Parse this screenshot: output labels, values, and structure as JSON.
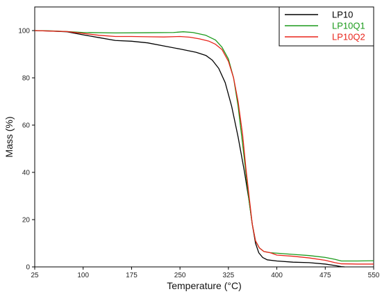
{
  "chart_data": {
    "type": "line",
    "title": "",
    "xlabel": "Temperature (°C)",
    "ylabel": "Mass (%)",
    "xlim": [
      25,
      550
    ],
    "ylim": [
      0,
      110
    ],
    "x_ticks": [
      25,
      100,
      175,
      250,
      325,
      400,
      475,
      550
    ],
    "y_ticks": [
      0,
      20,
      40,
      60,
      80,
      100
    ],
    "grid": false,
    "legend_position": "top-right",
    "series": [
      {
        "name": "LP10",
        "color": "#000000",
        "points": [
          [
            25,
            100
          ],
          [
            50,
            99.8
          ],
          [
            75,
            99.5
          ],
          [
            100,
            98.2
          ],
          [
            125,
            97
          ],
          [
            150,
            95.8
          ],
          [
            175,
            95.5
          ],
          [
            200,
            94.8
          ],
          [
            225,
            93.5
          ],
          [
            250,
            92.2
          ],
          [
            275,
            90.8
          ],
          [
            290,
            89.5
          ],
          [
            300,
            87.5
          ],
          [
            310,
            84
          ],
          [
            320,
            78
          ],
          [
            330,
            68
          ],
          [
            340,
            55
          ],
          [
            350,
            40
          ],
          [
            357,
            28
          ],
          [
            362,
            18
          ],
          [
            367,
            10
          ],
          [
            372,
            6
          ],
          [
            378,
            4
          ],
          [
            385,
            3
          ],
          [
            400,
            2.5
          ],
          [
            425,
            2
          ],
          [
            450,
            1.8
          ],
          [
            475,
            1.2
          ],
          [
            490,
            0.6
          ],
          [
            500,
            0.1
          ],
          [
            505,
            0
          ]
        ]
      },
      {
        "name": "LP10Q1",
        "color": "#1a9a1a",
        "points": [
          [
            25,
            100
          ],
          [
            50,
            99.9
          ],
          [
            75,
            99.6
          ],
          [
            100,
            99.2
          ],
          [
            150,
            99
          ],
          [
            200,
            99.1
          ],
          [
            240,
            99.2
          ],
          [
            255,
            99.5
          ],
          [
            270,
            99.2
          ],
          [
            290,
            98
          ],
          [
            305,
            96
          ],
          [
            315,
            93
          ],
          [
            325,
            88
          ],
          [
            333,
            80
          ],
          [
            340,
            68
          ],
          [
            347,
            52
          ],
          [
            352,
            40
          ],
          [
            357,
            28
          ],
          [
            362,
            18
          ],
          [
            367,
            11
          ],
          [
            373,
            8
          ],
          [
            380,
            6.5
          ],
          [
            390,
            6
          ],
          [
            400,
            5.8
          ],
          [
            425,
            5.3
          ],
          [
            450,
            4.8
          ],
          [
            475,
            4
          ],
          [
            490,
            3.2
          ],
          [
            500,
            2.5
          ],
          [
            525,
            2.5
          ],
          [
            550,
            2.6
          ]
        ]
      },
      {
        "name": "LP10Q2",
        "color": "#e8231a",
        "points": [
          [
            25,
            100
          ],
          [
            50,
            99.8
          ],
          [
            75,
            99.6
          ],
          [
            100,
            98.8
          ],
          [
            125,
            98
          ],
          [
            150,
            97.5
          ],
          [
            175,
            97.5
          ],
          [
            200,
            97.4
          ],
          [
            225,
            97.3
          ],
          [
            250,
            97.5
          ],
          [
            265,
            97.2
          ],
          [
            280,
            96.5
          ],
          [
            295,
            95.5
          ],
          [
            305,
            94.2
          ],
          [
            315,
            92
          ],
          [
            325,
            87
          ],
          [
            333,
            80
          ],
          [
            340,
            70
          ],
          [
            347,
            56
          ],
          [
            352,
            42
          ],
          [
            357,
            30
          ],
          [
            362,
            18
          ],
          [
            367,
            11
          ],
          [
            373,
            8
          ],
          [
            380,
            6.5
          ],
          [
            390,
            6
          ],
          [
            400,
            5
          ],
          [
            425,
            4.5
          ],
          [
            450,
            3.8
          ],
          [
            475,
            2.8
          ],
          [
            490,
            1.8
          ],
          [
            500,
            1.3
          ],
          [
            525,
            1.2
          ],
          [
            550,
            1.2
          ]
        ]
      }
    ]
  }
}
